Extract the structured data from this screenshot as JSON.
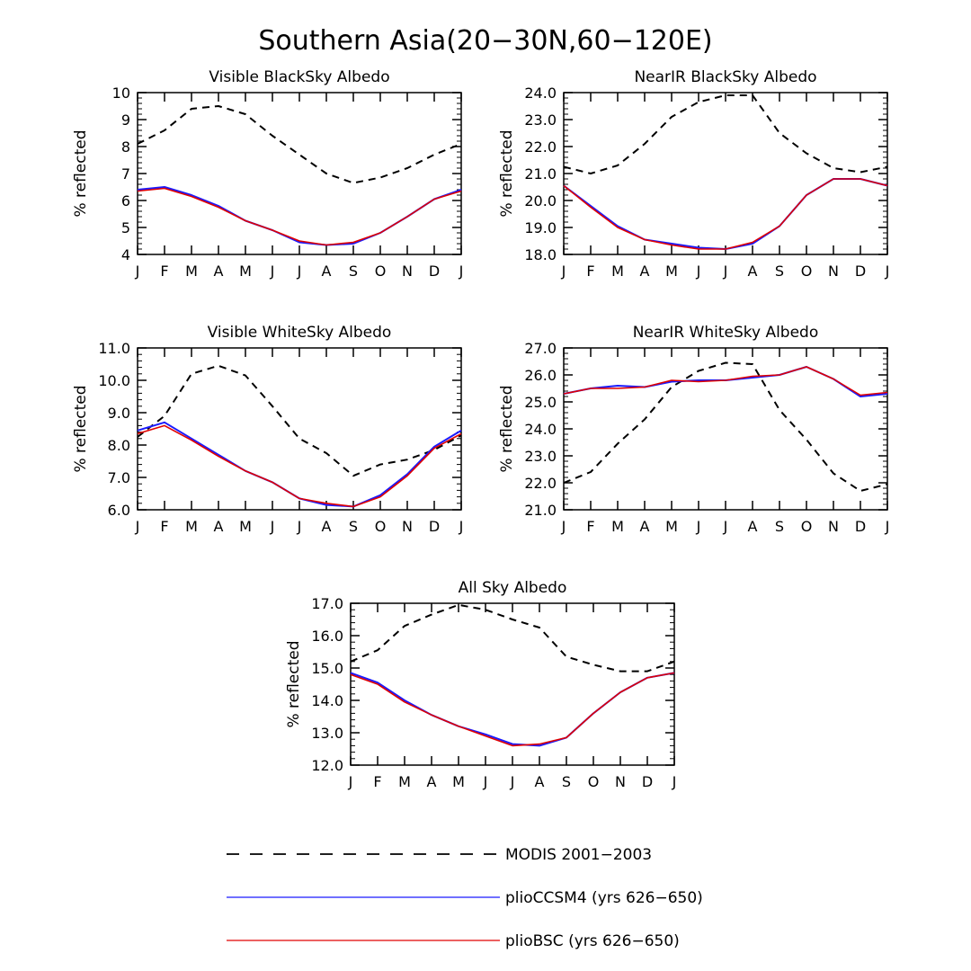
{
  "title": "Southern Asia(20−30N,60−120E)",
  "months": [
    "J",
    "F",
    "M",
    "A",
    "M",
    "J",
    "J",
    "A",
    "S",
    "O",
    "N",
    "D",
    "J"
  ],
  "colors": {
    "modis": "#000000",
    "ccsm4": "#1a1aff",
    "bsc": "#e00000"
  },
  "legend": [
    {
      "name": "MODIS 2001−2003",
      "style": "dashed",
      "color": "#000000"
    },
    {
      "name": "plioCCSM4 (yrs 626−650)",
      "style": "solid",
      "color": "#1a1aff"
    },
    {
      "name": "plioBSC (yrs 626−650)",
      "style": "solid",
      "color": "#e00000"
    }
  ],
  "chart_data": [
    {
      "type": "line",
      "title": "Visible BlackSky Albedo",
      "ylabel": "% reflected",
      "ylim": [
        4,
        10
      ],
      "yticks": [
        "4",
        "5",
        "6",
        "7",
        "8",
        "9",
        "10"
      ],
      "series": [
        {
          "name": "MODIS 2001−2003",
          "values": [
            8.1,
            8.6,
            9.4,
            9.5,
            9.2,
            8.4,
            7.7,
            7.0,
            6.65,
            6.85,
            7.2,
            7.7,
            8.1
          ]
        },
        {
          "name": "plioCCSM4 (yrs 626−650)",
          "values": [
            6.4,
            6.5,
            6.2,
            5.8,
            5.25,
            4.9,
            4.45,
            4.35,
            4.4,
            4.8,
            5.4,
            6.05,
            6.4
          ]
        },
        {
          "name": "plioBSC (yrs 626−650)",
          "values": [
            6.35,
            6.45,
            6.15,
            5.75,
            5.25,
            4.9,
            4.5,
            4.35,
            4.45,
            4.8,
            5.4,
            6.05,
            6.35
          ]
        }
      ]
    },
    {
      "type": "line",
      "title": "NearIR BlackSky Albedo",
      "ylabel": "% reflected",
      "ylim": [
        18,
        24
      ],
      "yticks": [
        "18.0",
        "19.0",
        "20.0",
        "21.0",
        "22.0",
        "23.0",
        "24.0"
      ],
      "series": [
        {
          "name": "MODIS 2001−2003",
          "values": [
            21.25,
            21.0,
            21.3,
            22.1,
            23.1,
            23.65,
            23.9,
            23.9,
            22.5,
            21.75,
            21.2,
            21.05,
            21.25
          ]
        },
        {
          "name": "plioCCSM4 (yrs 626−650)",
          "values": [
            20.55,
            19.8,
            19.05,
            18.55,
            18.4,
            18.25,
            18.2,
            18.4,
            19.05,
            20.2,
            20.8,
            20.8,
            20.55
          ]
        },
        {
          "name": "plioBSC (yrs 626−650)",
          "values": [
            20.55,
            19.75,
            19.0,
            18.55,
            18.35,
            18.2,
            18.2,
            18.45,
            19.05,
            20.2,
            20.8,
            20.8,
            20.55
          ]
        }
      ]
    },
    {
      "type": "line",
      "title": "Visible WhiteSky Albedo",
      "ylabel": "% reflected",
      "ylim": [
        6,
        11
      ],
      "yticks": [
        "6.0",
        "7.0",
        "8.0",
        "9.0",
        "10.0",
        "11.0"
      ],
      "series": [
        {
          "name": "MODIS 2001−2003",
          "values": [
            8.25,
            8.9,
            10.2,
            10.45,
            10.15,
            9.2,
            8.2,
            7.75,
            7.05,
            7.4,
            7.55,
            7.85,
            8.3
          ]
        },
        {
          "name": "plioCCSM4 (yrs 626−650)",
          "values": [
            8.45,
            8.7,
            8.2,
            7.7,
            7.2,
            6.85,
            6.35,
            6.15,
            6.1,
            6.45,
            7.1,
            7.95,
            8.45
          ]
        },
        {
          "name": "plioBSC (yrs 626−650)",
          "values": [
            8.35,
            8.6,
            8.15,
            7.65,
            7.2,
            6.85,
            6.35,
            6.2,
            6.1,
            6.4,
            7.05,
            7.9,
            8.35
          ]
        }
      ]
    },
    {
      "type": "line",
      "title": "NearIR WhiteSky Albedo",
      "ylabel": "% reflected",
      "ylim": [
        21,
        27
      ],
      "yticks": [
        "21.0",
        "22.0",
        "23.0",
        "24.0",
        "25.0",
        "26.0",
        "27.0"
      ],
      "series": [
        {
          "name": "MODIS 2001−2003",
          "values": [
            22.0,
            22.4,
            23.45,
            24.35,
            25.55,
            26.15,
            26.45,
            26.4,
            24.7,
            23.6,
            22.35,
            21.7,
            21.95
          ]
        },
        {
          "name": "plioCCSM4 (yrs 626−650)",
          "values": [
            25.3,
            25.5,
            25.6,
            25.55,
            25.75,
            25.8,
            25.8,
            25.9,
            26.0,
            26.3,
            25.85,
            25.2,
            25.3
          ]
        },
        {
          "name": "plioBSC (yrs 626−650)",
          "values": [
            25.3,
            25.5,
            25.5,
            25.55,
            25.8,
            25.75,
            25.8,
            25.95,
            26.0,
            26.3,
            25.85,
            25.25,
            25.35
          ]
        }
      ]
    },
    {
      "type": "line",
      "title": "All Sky Albedo",
      "ylabel": "% reflected",
      "ylim": [
        12,
        17
      ],
      "yticks": [
        "12.0",
        "13.0",
        "14.0",
        "15.0",
        "16.0",
        "17.0"
      ],
      "series": [
        {
          "name": "MODIS 2001−2003",
          "values": [
            15.2,
            15.55,
            16.3,
            16.65,
            16.95,
            16.8,
            16.5,
            16.25,
            15.35,
            15.1,
            14.9,
            14.9,
            15.2
          ]
        },
        {
          "name": "plioCCSM4 (yrs 626−650)",
          "values": [
            14.85,
            14.55,
            14.0,
            13.55,
            13.2,
            12.95,
            12.65,
            12.6,
            12.85,
            13.6,
            14.25,
            14.7,
            14.85
          ]
        },
        {
          "name": "plioBSC (yrs 626−650)",
          "values": [
            14.8,
            14.5,
            13.95,
            13.55,
            13.2,
            12.9,
            12.6,
            12.65,
            12.85,
            13.6,
            14.25,
            14.7,
            14.85
          ]
        }
      ]
    }
  ]
}
